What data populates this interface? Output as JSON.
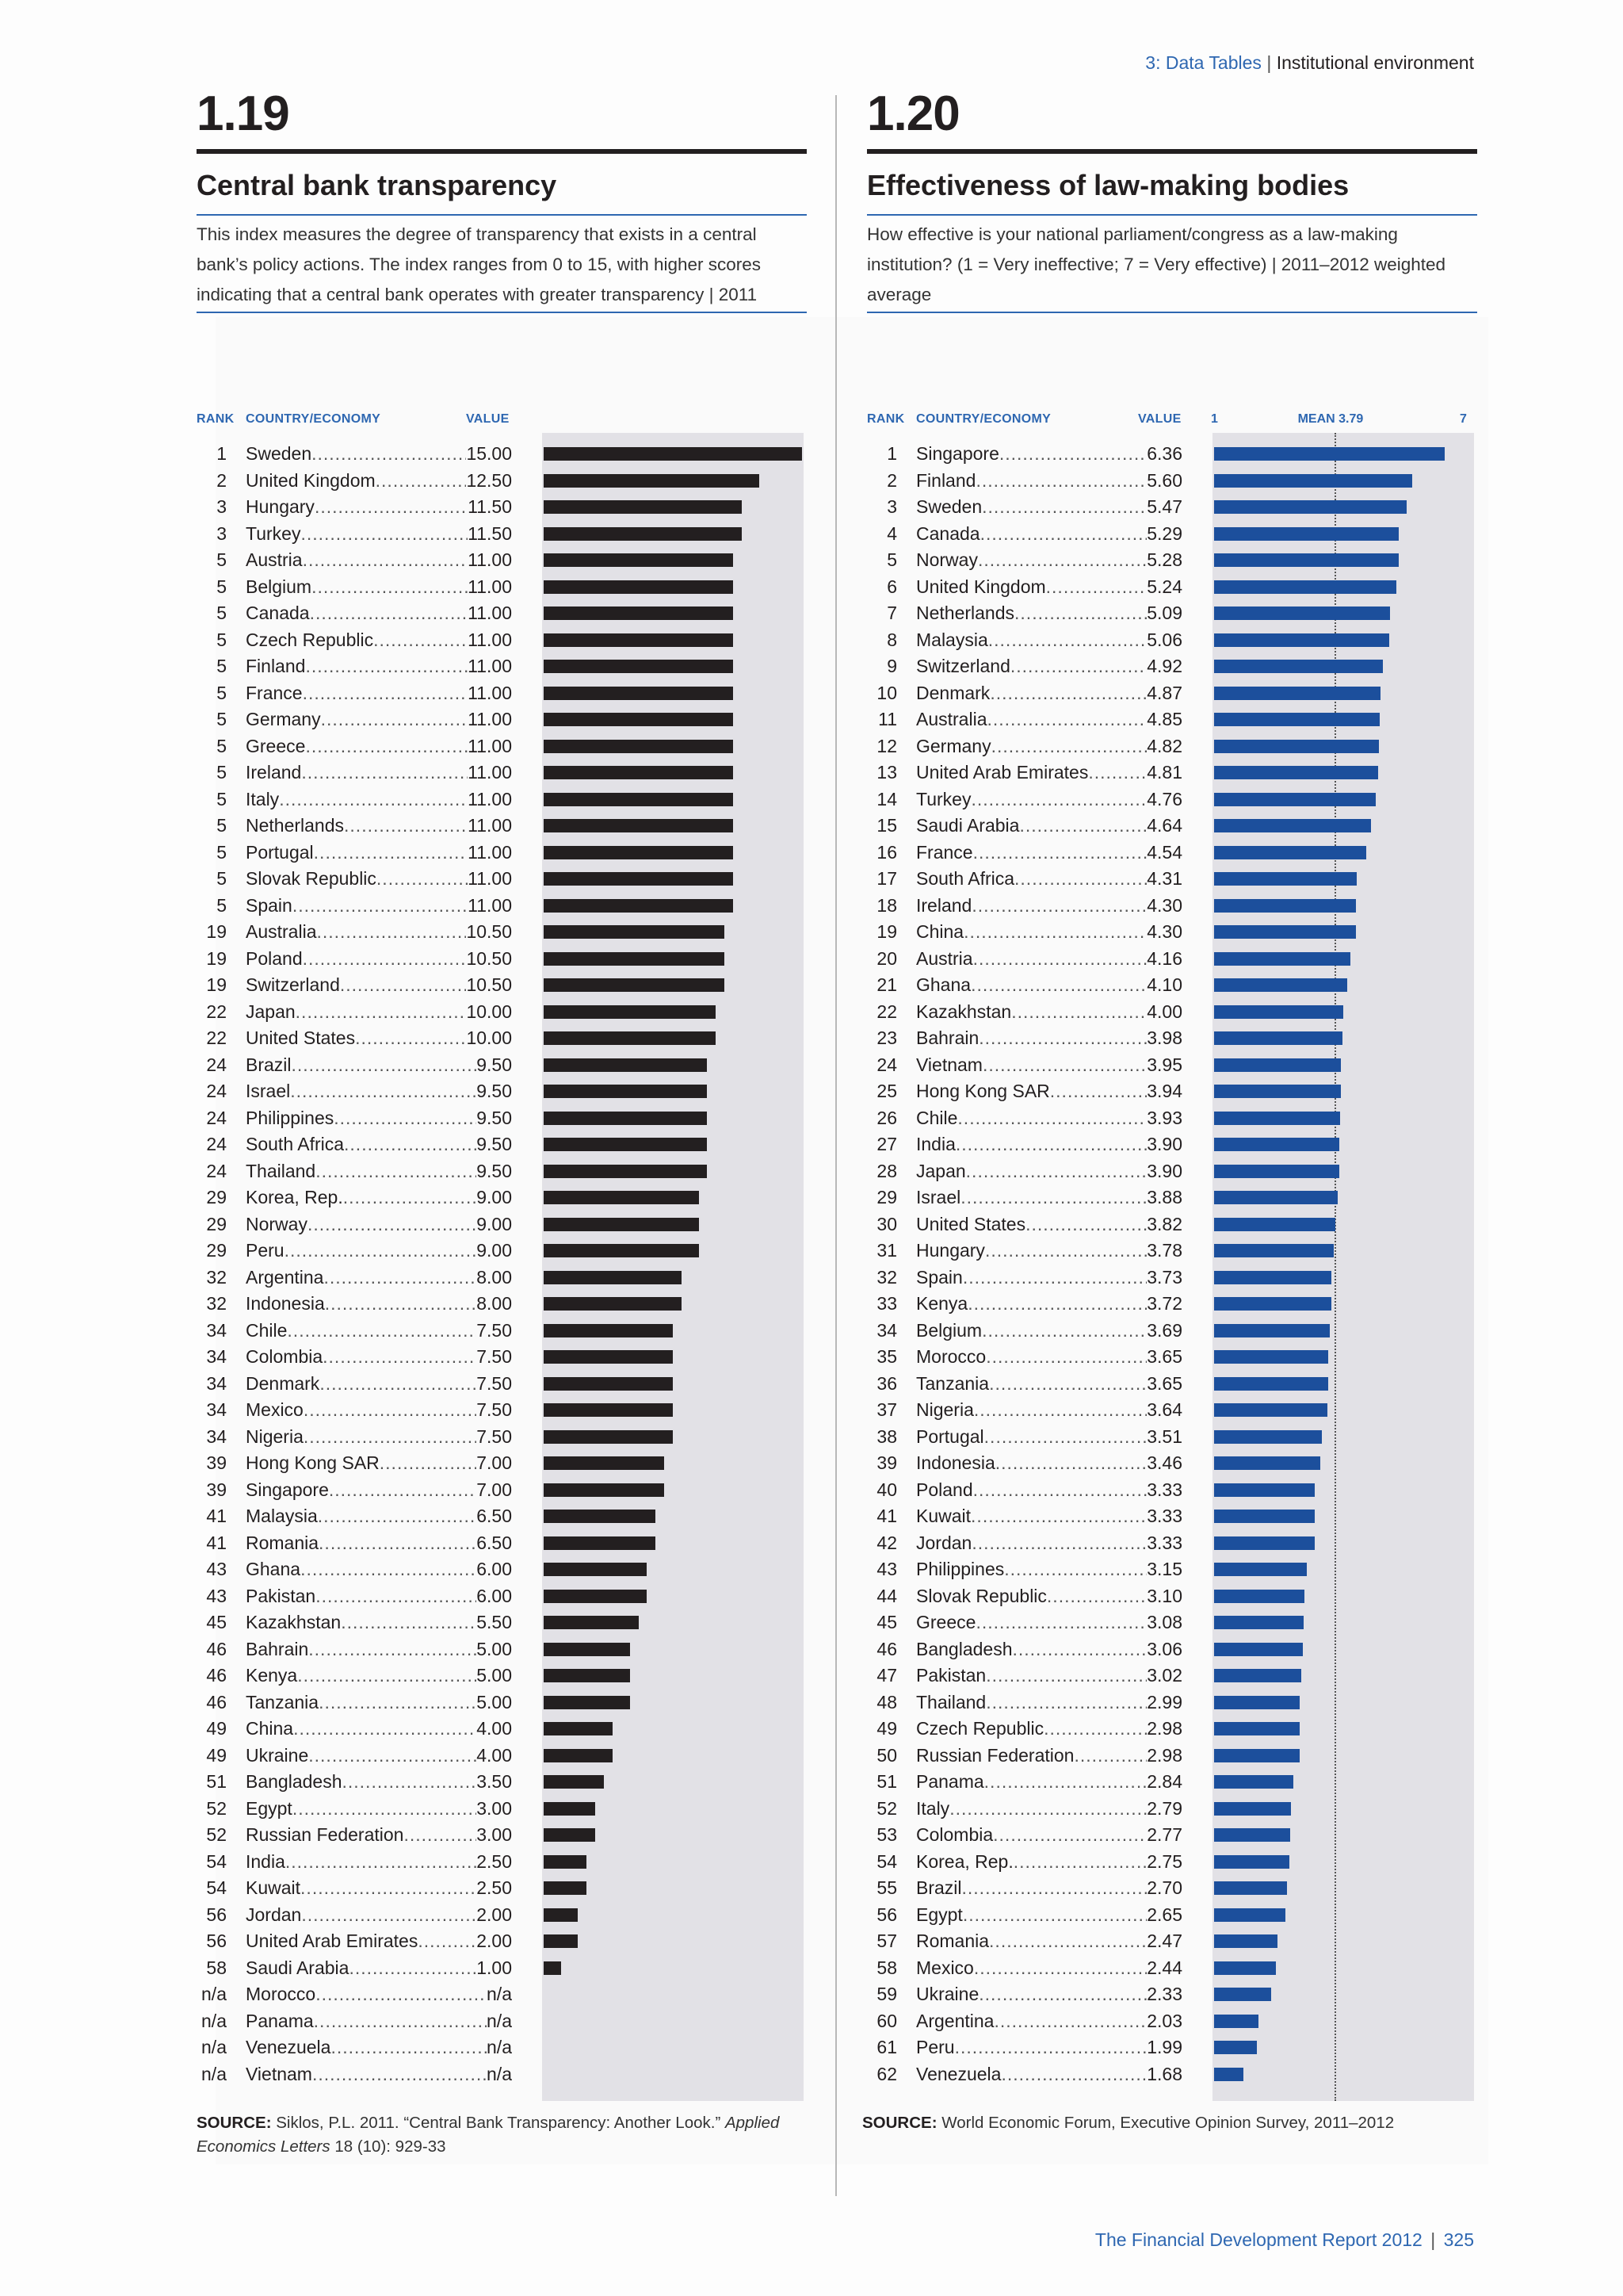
{
  "header": {
    "section": "3: Data Tables",
    "separator": "|",
    "subsection": "Institutional environment"
  },
  "footer": {
    "report": "The Financial Development Report 2012",
    "separator": "|",
    "page": "325"
  },
  "left": {
    "number": "1.19",
    "title": "Central bank transparency",
    "description": "This index measures the degree of transparency that exists in a central bank’s policy actions. The index ranges from 0 to 15, with higher scores indicating that a central bank operates with greater transparency | 2011",
    "col_rank": "RANK",
    "col_country": "COUNTRY/ECONOMY",
    "col_value": "VALUE",
    "source_label": "SOURCE:",
    "source_text_a": "Siklos, P.L. 2011. “Central Bank Transparency: Another Look.”",
    "source_text_italic": "Applied Economics Letters",
    "source_text_b": "18 (10): 929-33",
    "bar_color": "#231f20"
  },
  "right": {
    "number": "1.20",
    "title": "Effectiveness of law-making bodies",
    "description": "How effective is your national parliament/congress as a law-making institution? (1 = Very ineffective; 7 = Very effective) | 2011–2012 weighted average",
    "col_rank": "RANK",
    "col_country": "COUNTRY/ECONOMY",
    "col_value": "VALUE",
    "axis_min_label": "1",
    "mean_label": "MEAN 3.79",
    "axis_max_label": "7",
    "source_label": "SOURCE:",
    "source_text": "World Economic Forum, Executive Opinion Survey, 2011–2012",
    "bar_color": "#1c4f9c"
  },
  "chart_data": [
    {
      "type": "bar",
      "orientation": "horizontal",
      "title": "Central bank transparency",
      "xlim": [
        0,
        15
      ],
      "rows": [
        {
          "rank": "1",
          "country": "Sweden",
          "value": "15.00",
          "v": 15.0
        },
        {
          "rank": "2",
          "country": "United Kingdom",
          "value": "12.50",
          "v": 12.5
        },
        {
          "rank": "3",
          "country": "Hungary",
          "value": "11.50",
          "v": 11.5
        },
        {
          "rank": "3",
          "country": "Turkey",
          "value": "11.50",
          "v": 11.5
        },
        {
          "rank": "5",
          "country": "Austria",
          "value": "11.00",
          "v": 11.0
        },
        {
          "rank": "5",
          "country": "Belgium",
          "value": "11.00",
          "v": 11.0
        },
        {
          "rank": "5",
          "country": "Canada",
          "value": "11.00",
          "v": 11.0
        },
        {
          "rank": "5",
          "country": "Czech Republic",
          "value": "11.00",
          "v": 11.0
        },
        {
          "rank": "5",
          "country": "Finland",
          "value": "11.00",
          "v": 11.0
        },
        {
          "rank": "5",
          "country": "France",
          "value": "11.00",
          "v": 11.0
        },
        {
          "rank": "5",
          "country": "Germany",
          "value": "11.00",
          "v": 11.0
        },
        {
          "rank": "5",
          "country": "Greece",
          "value": "11.00",
          "v": 11.0
        },
        {
          "rank": "5",
          "country": "Ireland",
          "value": "11.00",
          "v": 11.0
        },
        {
          "rank": "5",
          "country": "Italy",
          "value": "11.00",
          "v": 11.0
        },
        {
          "rank": "5",
          "country": "Netherlands",
          "value": "11.00",
          "v": 11.0
        },
        {
          "rank": "5",
          "country": "Portugal",
          "value": "11.00",
          "v": 11.0
        },
        {
          "rank": "5",
          "country": "Slovak Republic",
          "value": "11.00",
          "v": 11.0
        },
        {
          "rank": "5",
          "country": "Spain",
          "value": "11.00",
          "v": 11.0
        },
        {
          "rank": "19",
          "country": "Australia",
          "value": "10.50",
          "v": 10.5
        },
        {
          "rank": "19",
          "country": "Poland",
          "value": "10.50",
          "v": 10.5
        },
        {
          "rank": "19",
          "country": "Switzerland",
          "value": "10.50",
          "v": 10.5
        },
        {
          "rank": "22",
          "country": "Japan",
          "value": "10.00",
          "v": 10.0
        },
        {
          "rank": "22",
          "country": "United States",
          "value": "10.00",
          "v": 10.0
        },
        {
          "rank": "24",
          "country": "Brazil",
          "value": "9.50",
          "v": 9.5
        },
        {
          "rank": "24",
          "country": "Israel",
          "value": "9.50",
          "v": 9.5
        },
        {
          "rank": "24",
          "country": "Philippines",
          "value": "9.50",
          "v": 9.5
        },
        {
          "rank": "24",
          "country": "South Africa",
          "value": "9.50",
          "v": 9.5
        },
        {
          "rank": "24",
          "country": "Thailand",
          "value": "9.50",
          "v": 9.5
        },
        {
          "rank": "29",
          "country": "Korea, Rep.",
          "value": "9.00",
          "v": 9.0
        },
        {
          "rank": "29",
          "country": "Norway",
          "value": "9.00",
          "v": 9.0
        },
        {
          "rank": "29",
          "country": "Peru",
          "value": "9.00",
          "v": 9.0
        },
        {
          "rank": "32",
          "country": "Argentina",
          "value": "8.00",
          "v": 8.0
        },
        {
          "rank": "32",
          "country": "Indonesia",
          "value": "8.00",
          "v": 8.0
        },
        {
          "rank": "34",
          "country": "Chile",
          "value": "7.50",
          "v": 7.5
        },
        {
          "rank": "34",
          "country": "Colombia",
          "value": "7.50",
          "v": 7.5
        },
        {
          "rank": "34",
          "country": "Denmark",
          "value": "7.50",
          "v": 7.5
        },
        {
          "rank": "34",
          "country": "Mexico",
          "value": "7.50",
          "v": 7.5
        },
        {
          "rank": "34",
          "country": "Nigeria",
          "value": "7.50",
          "v": 7.5
        },
        {
          "rank": "39",
          "country": "Hong Kong SAR",
          "value": "7.00",
          "v": 7.0
        },
        {
          "rank": "39",
          "country": "Singapore",
          "value": "7.00",
          "v": 7.0
        },
        {
          "rank": "41",
          "country": "Malaysia",
          "value": "6.50",
          "v": 6.5
        },
        {
          "rank": "41",
          "country": "Romania",
          "value": "6.50",
          "v": 6.5
        },
        {
          "rank": "43",
          "country": "Ghana",
          "value": "6.00",
          "v": 6.0
        },
        {
          "rank": "43",
          "country": "Pakistan",
          "value": "6.00",
          "v": 6.0
        },
        {
          "rank": "45",
          "country": "Kazakhstan",
          "value": "5.50",
          "v": 5.5
        },
        {
          "rank": "46",
          "country": "Bahrain",
          "value": "5.00",
          "v": 5.0
        },
        {
          "rank": "46",
          "country": "Kenya",
          "value": "5.00",
          "v": 5.0
        },
        {
          "rank": "46",
          "country": "Tanzania",
          "value": "5.00",
          "v": 5.0
        },
        {
          "rank": "49",
          "country": "China",
          "value": "4.00",
          "v": 4.0
        },
        {
          "rank": "49",
          "country": "Ukraine",
          "value": "4.00",
          "v": 4.0
        },
        {
          "rank": "51",
          "country": "Bangladesh",
          "value": "3.50",
          "v": 3.5
        },
        {
          "rank": "52",
          "country": "Egypt",
          "value": "3.00",
          "v": 3.0
        },
        {
          "rank": "52",
          "country": "Russian Federation",
          "value": "3.00",
          "v": 3.0
        },
        {
          "rank": "54",
          "country": "India",
          "value": "2.50",
          "v": 2.5
        },
        {
          "rank": "54",
          "country": "Kuwait",
          "value": "2.50",
          "v": 2.5
        },
        {
          "rank": "56",
          "country": "Jordan",
          "value": "2.00",
          "v": 2.0
        },
        {
          "rank": "56",
          "country": "United Arab Emirates",
          "value": "2.00",
          "v": 2.0
        },
        {
          "rank": "58",
          "country": "Saudi Arabia",
          "value": "1.00",
          "v": 1.0
        },
        {
          "rank": "n/a",
          "country": "Morocco",
          "value": "n/a",
          "v": null
        },
        {
          "rank": "n/a",
          "country": "Panama",
          "value": "n/a",
          "v": null
        },
        {
          "rank": "n/a",
          "country": "Venezuela",
          "value": "n/a",
          "v": null
        },
        {
          "rank": "n/a",
          "country": "Vietnam",
          "value": "n/a",
          "v": null
        }
      ]
    },
    {
      "type": "bar",
      "orientation": "horizontal",
      "title": "Effectiveness of law-making bodies",
      "xlim": [
        1,
        7
      ],
      "mean": 3.79,
      "rows": [
        {
          "rank": "1",
          "country": "Singapore",
          "value": "6.36",
          "v": 6.36
        },
        {
          "rank": "2",
          "country": "Finland",
          "value": "5.60",
          "v": 5.6
        },
        {
          "rank": "3",
          "country": "Sweden",
          "value": "5.47",
          "v": 5.47
        },
        {
          "rank": "4",
          "country": "Canada",
          "value": "5.29",
          "v": 5.29
        },
        {
          "rank": "5",
          "country": "Norway",
          "value": "5.28",
          "v": 5.28
        },
        {
          "rank": "6",
          "country": "United Kingdom",
          "value": "5.24",
          "v": 5.24
        },
        {
          "rank": "7",
          "country": "Netherlands",
          "value": "5.09",
          "v": 5.09
        },
        {
          "rank": "8",
          "country": "Malaysia",
          "value": "5.06",
          "v": 5.06
        },
        {
          "rank": "9",
          "country": "Switzerland",
          "value": "4.92",
          "v": 4.92
        },
        {
          "rank": "10",
          "country": "Denmark",
          "value": "4.87",
          "v": 4.87
        },
        {
          "rank": "11",
          "country": "Australia",
          "value": "4.85",
          "v": 4.85
        },
        {
          "rank": "12",
          "country": "Germany",
          "value": "4.82",
          "v": 4.82
        },
        {
          "rank": "13",
          "country": "United Arab Emirates",
          "value": "4.81",
          "v": 4.81
        },
        {
          "rank": "14",
          "country": "Turkey",
          "value": "4.76",
          "v": 4.76
        },
        {
          "rank": "15",
          "country": "Saudi Arabia",
          "value": "4.64",
          "v": 4.64
        },
        {
          "rank": "16",
          "country": "France",
          "value": "4.54",
          "v": 4.54
        },
        {
          "rank": "17",
          "country": "South Africa",
          "value": "4.31",
          "v": 4.31
        },
        {
          "rank": "18",
          "country": "Ireland",
          "value": "4.30",
          "v": 4.3
        },
        {
          "rank": "19",
          "country": "China",
          "value": "4.30",
          "v": 4.3
        },
        {
          "rank": "20",
          "country": "Austria",
          "value": "4.16",
          "v": 4.16
        },
        {
          "rank": "21",
          "country": "Ghana",
          "value": "4.10",
          "v": 4.1
        },
        {
          "rank": "22",
          "country": "Kazakhstan",
          "value": "4.00",
          "v": 4.0
        },
        {
          "rank": "23",
          "country": "Bahrain",
          "value": "3.98",
          "v": 3.98
        },
        {
          "rank": "24",
          "country": "Vietnam",
          "value": "3.95",
          "v": 3.95
        },
        {
          "rank": "25",
          "country": "Hong Kong SAR",
          "value": "3.94",
          "v": 3.94
        },
        {
          "rank": "26",
          "country": "Chile",
          "value": "3.93",
          "v": 3.93
        },
        {
          "rank": "27",
          "country": "India",
          "value": "3.90",
          "v": 3.9
        },
        {
          "rank": "28",
          "country": "Japan",
          "value": "3.90",
          "v": 3.9
        },
        {
          "rank": "29",
          "country": "Israel",
          "value": "3.88",
          "v": 3.88
        },
        {
          "rank": "30",
          "country": "United States",
          "value": "3.82",
          "v": 3.82
        },
        {
          "rank": "31",
          "country": "Hungary",
          "value": "3.78",
          "v": 3.78
        },
        {
          "rank": "32",
          "country": "Spain",
          "value": "3.73",
          "v": 3.73
        },
        {
          "rank": "33",
          "country": "Kenya",
          "value": "3.72",
          "v": 3.72
        },
        {
          "rank": "34",
          "country": "Belgium",
          "value": "3.69",
          "v": 3.69
        },
        {
          "rank": "35",
          "country": "Morocco",
          "value": "3.65",
          "v": 3.65
        },
        {
          "rank": "36",
          "country": "Tanzania",
          "value": "3.65",
          "v": 3.65
        },
        {
          "rank": "37",
          "country": "Nigeria",
          "value": "3.64",
          "v": 3.64
        },
        {
          "rank": "38",
          "country": "Portugal",
          "value": "3.51",
          "v": 3.51
        },
        {
          "rank": "39",
          "country": "Indonesia",
          "value": "3.46",
          "v": 3.46
        },
        {
          "rank": "40",
          "country": "Poland",
          "value": "3.33",
          "v": 3.33
        },
        {
          "rank": "41",
          "country": "Kuwait",
          "value": "3.33",
          "v": 3.33
        },
        {
          "rank": "42",
          "country": "Jordan",
          "value": "3.33",
          "v": 3.33
        },
        {
          "rank": "43",
          "country": "Philippines",
          "value": "3.15",
          "v": 3.15
        },
        {
          "rank": "44",
          "country": "Slovak Republic",
          "value": "3.10",
          "v": 3.1
        },
        {
          "rank": "45",
          "country": "Greece",
          "value": "3.08",
          "v": 3.08
        },
        {
          "rank": "46",
          "country": "Bangladesh",
          "value": "3.06",
          "v": 3.06
        },
        {
          "rank": "47",
          "country": "Pakistan",
          "value": "3.02",
          "v": 3.02
        },
        {
          "rank": "48",
          "country": "Thailand",
          "value": "2.99",
          "v": 2.99
        },
        {
          "rank": "49",
          "country": "Czech Republic",
          "value": "2.98",
          "v": 2.98
        },
        {
          "rank": "50",
          "country": "Russian Federation",
          "value": "2.98",
          "v": 2.98
        },
        {
          "rank": "51",
          "country": "Panama",
          "value": "2.84",
          "v": 2.84
        },
        {
          "rank": "52",
          "country": "Italy",
          "value": "2.79",
          "v": 2.79
        },
        {
          "rank": "53",
          "country": "Colombia",
          "value": "2.77",
          "v": 2.77
        },
        {
          "rank": "54",
          "country": "Korea, Rep.",
          "value": "2.75",
          "v": 2.75
        },
        {
          "rank": "55",
          "country": "Brazil",
          "value": "2.70",
          "v": 2.7
        },
        {
          "rank": "56",
          "country": "Egypt",
          "value": "2.65",
          "v": 2.65
        },
        {
          "rank": "57",
          "country": "Romania",
          "value": "2.47",
          "v": 2.47
        },
        {
          "rank": "58",
          "country": "Mexico",
          "value": "2.44",
          "v": 2.44
        },
        {
          "rank": "59",
          "country": "Ukraine",
          "value": "2.33",
          "v": 2.33
        },
        {
          "rank": "60",
          "country": "Argentina",
          "value": "2.03",
          "v": 2.03
        },
        {
          "rank": "61",
          "country": "Peru",
          "value": "1.99",
          "v": 1.99
        },
        {
          "rank": "62",
          "country": "Venezuela",
          "value": "1.68",
          "v": 1.68
        }
      ]
    }
  ]
}
